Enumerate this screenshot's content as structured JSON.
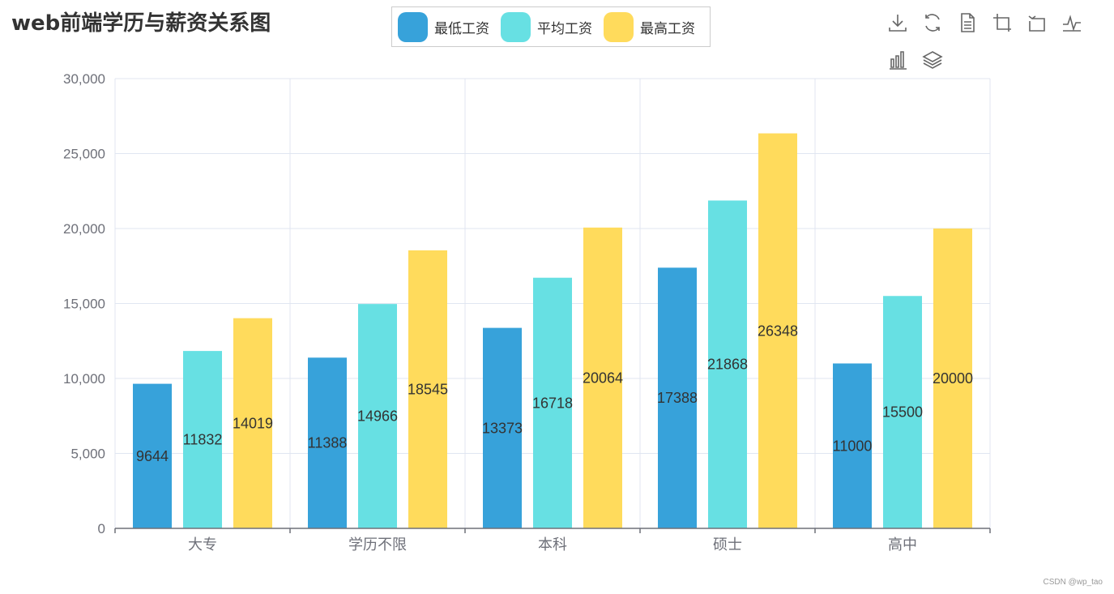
{
  "chart_data": {
    "type": "bar",
    "title": "web前端学历与薪资关系图",
    "categories": [
      "大专",
      "学历不限",
      "本科",
      "硕士",
      "高中"
    ],
    "series": [
      {
        "name": "最低工资",
        "values": [
          9644,
          11388,
          13373,
          17388,
          11000
        ],
        "color": "#37a2da"
      },
      {
        "name": "平均工资",
        "values": [
          11832,
          14966,
          16718,
          21868,
          15500
        ],
        "color": "#67e0e3"
      },
      {
        "name": "最高工资",
        "values": [
          14019,
          18545,
          20064,
          26348,
          20000
        ],
        "color": "#ffdb5c"
      }
    ],
    "ylim": [
      0,
      30000
    ],
    "yticks": [
      "0",
      "5,000",
      "10,000",
      "15,000",
      "20,000",
      "25,000",
      "30,000"
    ],
    "grid": true,
    "legend_position": "top-center",
    "data_labels": "inside"
  },
  "toolbox": {
    "icons": [
      "download-icon",
      "refresh-icon",
      "data-view-icon",
      "zoom-icon",
      "zoom-reset-icon",
      "line-chart-icon",
      "bar-chart-icon",
      "stack-icon"
    ]
  },
  "watermark": "CSDN @wp_tao"
}
